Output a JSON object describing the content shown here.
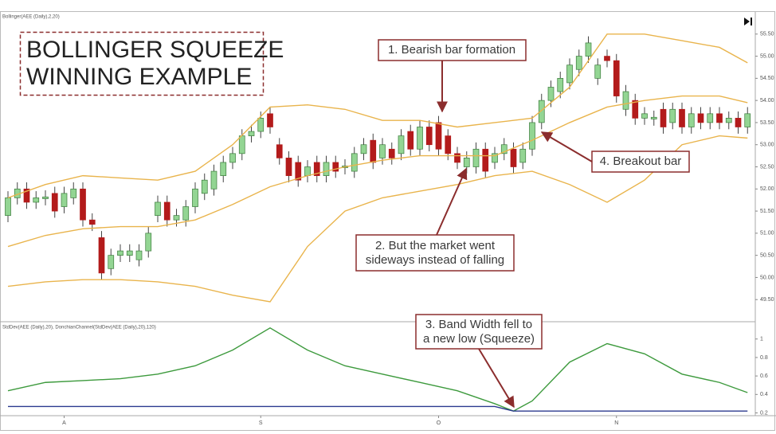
{
  "chart_data": [
    {
      "type": "candlestick",
      "label": "Bollinger(AEE (Daily),2,20)",
      "title": [
        "BOLLINGER SQUEEZE",
        "WINNING EXAMPLE"
      ],
      "annotations": [
        {
          "lines": [
            "1. Bearish bar formation"
          ]
        },
        {
          "lines": [
            "2. But the market went",
            "sideways instead of falling"
          ]
        },
        {
          "lines": [
            "3. Band Width fell to",
            "a new low (Squeeze)"
          ]
        },
        {
          "lines": [
            "4. Breakout bar"
          ]
        }
      ],
      "categories": [
        null,
        null,
        null,
        null,
        null,
        null,
        "A",
        null,
        null,
        null,
        null,
        null,
        null,
        null,
        null,
        null,
        null,
        null,
        null,
        null,
        null,
        null,
        null,
        null,
        null,
        null,
        null,
        "S",
        null,
        null,
        null,
        null,
        null,
        null,
        null,
        null,
        null,
        null,
        null,
        null,
        null,
        null,
        null,
        null,
        null,
        null,
        "O",
        null,
        null,
        null,
        null,
        null,
        null,
        null,
        null,
        null,
        null,
        null,
        null,
        null,
        null,
        null,
        null,
        null,
        null,
        "N",
        null,
        null,
        null,
        null,
        null,
        null,
        null,
        null,
        null,
        null,
        null,
        null,
        null,
        null
      ],
      "open": [
        51.4,
        51.8,
        52.0,
        51.7,
        51.78,
        51.9,
        51.6,
        51.8,
        52.0,
        51.3,
        50.9,
        50.2,
        50.5,
        50.5,
        50.4,
        50.6,
        51.4,
        51.7,
        51.3,
        51.3,
        51.6,
        51.9,
        52.0,
        52.3,
        52.6,
        52.8,
        53.2,
        53.3,
        53.7,
        53.0,
        52.7,
        52.6,
        52.3,
        52.6,
        52.3,
        52.6,
        52.48,
        52.4,
        52.8,
        53.1,
        52.7,
        52.9,
        52.8,
        53.3,
        52.9,
        53.4,
        53.5,
        53.2,
        52.8,
        52.5,
        52.5,
        52.9,
        52.6,
        52.8,
        52.9,
        52.6,
        52.9,
        53.5,
        54.0,
        54.2,
        54.4,
        54.7,
        55.0,
        54.5,
        55.0,
        54.9,
        53.8,
        54.0,
        53.6,
        53.58,
        53.8,
        53.5,
        53.8,
        53.4,
        53.7,
        53.5,
        53.7,
        53.5,
        53.6,
        53.4
      ],
      "high": [
        51.95,
        52.15,
        52.15,
        51.95,
        51.97,
        52.05,
        52.05,
        52.15,
        52.15,
        51.45,
        51.05,
        50.65,
        50.75,
        50.75,
        50.75,
        51.15,
        51.85,
        51.85,
        51.55,
        51.75,
        52.15,
        52.35,
        52.55,
        52.75,
        52.95,
        53.35,
        53.45,
        53.75,
        53.85,
        53.15,
        52.85,
        52.75,
        52.65,
        52.75,
        52.75,
        52.75,
        52.67,
        52.95,
        53.15,
        53.25,
        53.15,
        53.05,
        53.35,
        53.45,
        53.55,
        53.55,
        53.65,
        53.35,
        52.95,
        52.85,
        53.05,
        53.05,
        52.95,
        53.15,
        53.05,
        53.05,
        53.65,
        54.15,
        54.45,
        54.65,
        54.95,
        55.15,
        55.45,
        54.95,
        55.15,
        55.05,
        54.35,
        54.15,
        53.85,
        53.77,
        53.95,
        53.95,
        53.95,
        53.85,
        53.85,
        53.85,
        53.85,
        53.75,
        53.75,
        53.85
      ],
      "low": [
        51.25,
        51.65,
        51.55,
        51.55,
        51.63,
        51.35,
        51.45,
        51.65,
        51.15,
        51.05,
        49.95,
        50.05,
        50.35,
        50.35,
        50.25,
        50.45,
        51.25,
        51.15,
        51.15,
        51.15,
        51.45,
        51.75,
        51.85,
        52.15,
        52.45,
        52.65,
        53.05,
        53.15,
        53.25,
        52.55,
        52.15,
        52.05,
        52.15,
        52.15,
        52.15,
        52.25,
        52.33,
        52.25,
        52.65,
        52.45,
        52.55,
        52.55,
        52.65,
        52.75,
        52.75,
        52.85,
        52.75,
        52.65,
        52.45,
        52.35,
        52.35,
        52.25,
        52.45,
        52.65,
        52.35,
        52.45,
        52.75,
        53.35,
        53.85,
        54.05,
        54.25,
        54.55,
        54.85,
        54.35,
        54.75,
        53.95,
        53.65,
        53.45,
        53.45,
        53.43,
        53.25,
        53.35,
        53.25,
        53.25,
        53.35,
        53.35,
        53.35,
        53.35,
        53.25,
        53.25
      ],
      "close": [
        51.8,
        52.0,
        51.7,
        51.8,
        51.82,
        51.5,
        51.9,
        52.0,
        51.3,
        51.2,
        50.1,
        50.5,
        50.6,
        50.6,
        50.6,
        51.0,
        51.7,
        51.3,
        51.4,
        51.6,
        52.0,
        52.2,
        52.4,
        52.6,
        52.8,
        53.2,
        53.3,
        53.6,
        53.4,
        52.7,
        52.3,
        52.2,
        52.5,
        52.3,
        52.6,
        52.4,
        52.52,
        52.8,
        53.0,
        52.6,
        53.0,
        52.7,
        53.2,
        52.9,
        53.4,
        53.0,
        52.9,
        52.8,
        52.6,
        52.7,
        52.9,
        52.4,
        52.8,
        53.0,
        52.5,
        52.9,
        53.5,
        54.0,
        54.3,
        54.5,
        54.8,
        55.0,
        55.3,
        54.8,
        54.9,
        54.1,
        54.2,
        53.6,
        53.7,
        53.62,
        53.4,
        53.8,
        53.4,
        53.7,
        53.5,
        53.7,
        53.5,
        53.6,
        53.4,
        53.7
      ],
      "up_color": "#93d593",
      "down_color": "#b31b1b",
      "series": [
        {
          "color": "#e9b44c",
          "x": [
            0,
            4,
            8,
            12,
            16,
            20,
            24,
            28,
            32,
            36,
            40,
            44,
            48,
            52,
            56,
            60,
            64,
            68,
            72,
            76,
            79
          ],
          "values": [
            51.8,
            52.1,
            52.3,
            52.25,
            52.2,
            52.4,
            53.0,
            53.85,
            53.9,
            53.8,
            53.55,
            53.55,
            53.4,
            53.5,
            53.6,
            54.3,
            55.5,
            55.5,
            55.35,
            55.2,
            54.85
          ]
        },
        {
          "color": "#e9b44c",
          "x": [
            0,
            4,
            8,
            12,
            16,
            20,
            24,
            28,
            32,
            36,
            40,
            44,
            48,
            52,
            56,
            60,
            64,
            68,
            72,
            76,
            79
          ],
          "values": [
            50.7,
            50.95,
            51.1,
            51.15,
            51.15,
            51.3,
            51.65,
            52.05,
            52.3,
            52.5,
            52.65,
            52.75,
            52.75,
            52.75,
            53.1,
            53.5,
            53.85,
            54.0,
            54.1,
            54.1,
            53.95
          ]
        },
        {
          "color": "#e9b44c",
          "x": [
            0,
            4,
            8,
            12,
            16,
            20,
            24,
            28,
            32,
            36,
            40,
            44,
            48,
            52,
            56,
            60,
            64,
            68,
            72,
            76,
            79
          ],
          "values": [
            49.8,
            49.9,
            49.95,
            49.95,
            49.9,
            49.8,
            49.6,
            49.45,
            50.7,
            51.5,
            51.8,
            51.95,
            52.1,
            52.3,
            52.4,
            52.1,
            51.7,
            52.2,
            53.0,
            53.2,
            53.15
          ]
        }
      ],
      "ylim": [
        49.0,
        56.0
      ],
      "yticks": [
        {
          "value": 49.5,
          "label": "49.50"
        },
        {
          "value": 50,
          "label": "50.00"
        },
        {
          "value": 50.5,
          "label": "50.50"
        },
        {
          "value": 51,
          "label": "51.00"
        },
        {
          "value": 51.5,
          "label": "51.50"
        },
        {
          "value": 52,
          "label": "52.00"
        },
        {
          "value": 52.5,
          "label": "52.50"
        },
        {
          "value": 53,
          "label": "53.00"
        },
        {
          "value": 53.5,
          "label": "53.50"
        },
        {
          "value": 54,
          "label": "54.00"
        },
        {
          "value": 54.5,
          "label": "54.50"
        },
        {
          "value": 55,
          "label": "55.00"
        },
        {
          "value": 55.5,
          "label": "55.50"
        }
      ]
    },
    {
      "type": "line",
      "label": "StdDev(AEE (Daily),20), DonchianChannel(StdDev(AEE (Daily),20),120)",
      "series": [
        {
          "color": "#3d9a3d",
          "x": [
            0,
            4,
            8,
            12,
            16,
            20,
            24,
            28,
            32,
            36,
            40,
            44,
            48,
            52,
            54,
            56,
            60,
            64,
            68,
            72,
            76,
            79
          ],
          "values": [
            0.44,
            0.53,
            0.55,
            0.57,
            0.62,
            0.71,
            0.88,
            1.12,
            0.88,
            0.71,
            0.62,
            0.53,
            0.44,
            0.3,
            0.22,
            0.33,
            0.75,
            0.95,
            0.84,
            0.62,
            0.53,
            0.42
          ]
        },
        {
          "color": "#2b3a8f",
          "x": [
            0,
            52,
            54,
            79
          ],
          "values": [
            0.27,
            0.27,
            0.22,
            0.22
          ]
        }
      ],
      "ylim": [
        0.17,
        1.17
      ],
      "yticks": [
        1,
        0.8,
        0.6,
        0.4,
        0.2
      ]
    }
  ]
}
